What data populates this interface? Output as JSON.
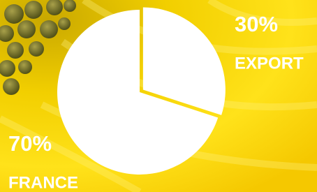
{
  "chart_data": {
    "type": "pie",
    "categories": [
      "EXPORT",
      "FRANCE"
    ],
    "values": [
      30,
      70
    ],
    "value_labels": [
      "30%",
      "70%"
    ],
    "colors": [
      "#ffffff",
      "#ffffff"
    ],
    "start_angle": 90,
    "direction": "clockwise",
    "explode": [
      true,
      false
    ]
  }
}
